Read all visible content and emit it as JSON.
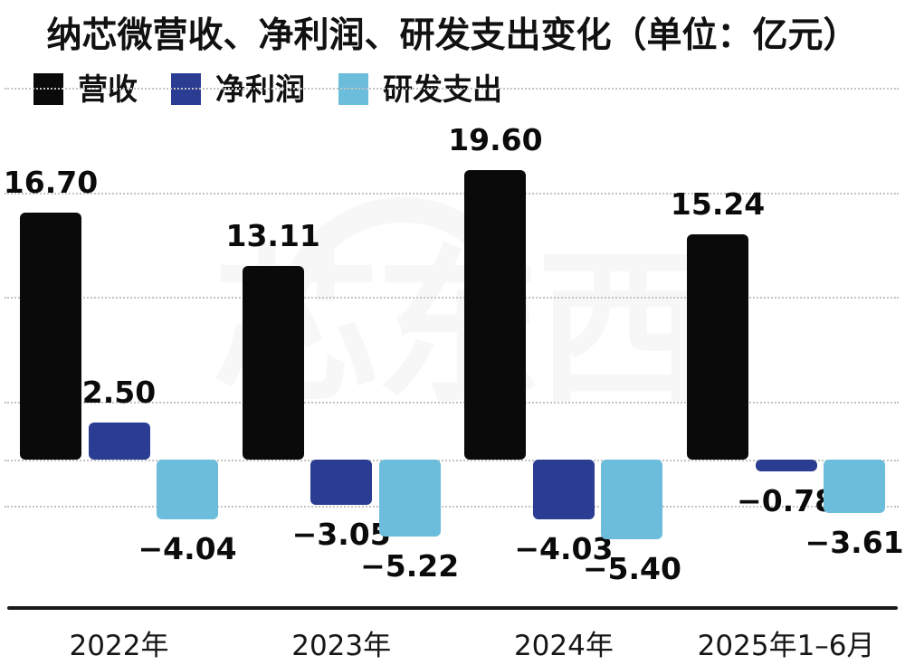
{
  "title": "纳芯微营收、净利润、研发支出变化（单位：亿元）",
  "unit": "亿元",
  "watermark": {
    "text": "芯东西"
  },
  "legend": [
    {
      "key": "revenue",
      "label": "营收",
      "color": "#0a0a0a"
    },
    {
      "key": "net-profit",
      "label": "净利润",
      "color": "#2b3c93"
    },
    {
      "key": "rd-spend",
      "label": "研发支出",
      "color": "#6cbddb"
    }
  ],
  "chart_data": {
    "type": "bar",
    "title": "纳芯微营收、净利润、研发支出变化（单位：亿元）",
    "categories": [
      "2022年",
      "2023年",
      "2024年",
      "2025年1–6月"
    ],
    "category_keys": [
      "2022",
      "2023",
      "2024",
      "2025-h1"
    ],
    "series": [
      {
        "key": "revenue",
        "name": "营收",
        "color": "#0a0a0a",
        "values": [
          16.7,
          13.11,
          19.6,
          15.24
        ]
      },
      {
        "key": "net-profit",
        "name": "净利润",
        "color": "#2b3c93",
        "values": [
          2.5,
          -3.05,
          -4.03,
          -0.78
        ]
      },
      {
        "key": "rd-spend",
        "name": "研发支出",
        "color": "#6cbddb",
        "values": [
          -4.04,
          -5.22,
          -5.4,
          -3.61
        ]
      }
    ],
    "value_labels": [
      [
        "16.70",
        "13.11",
        "19.60",
        "15.24"
      ],
      [
        "2.50",
        "−3.05",
        "−4.03",
        "−0.78"
      ],
      [
        "−4.04",
        "−5.22",
        "−5.40",
        "−3.61"
      ]
    ],
    "xlabel": "",
    "ylabel": "",
    "ylim": [
      -10,
      31
    ],
    "grid": "horizontal-dotted",
    "legend_position": "top-left",
    "value_label_format": "0.00"
  }
}
